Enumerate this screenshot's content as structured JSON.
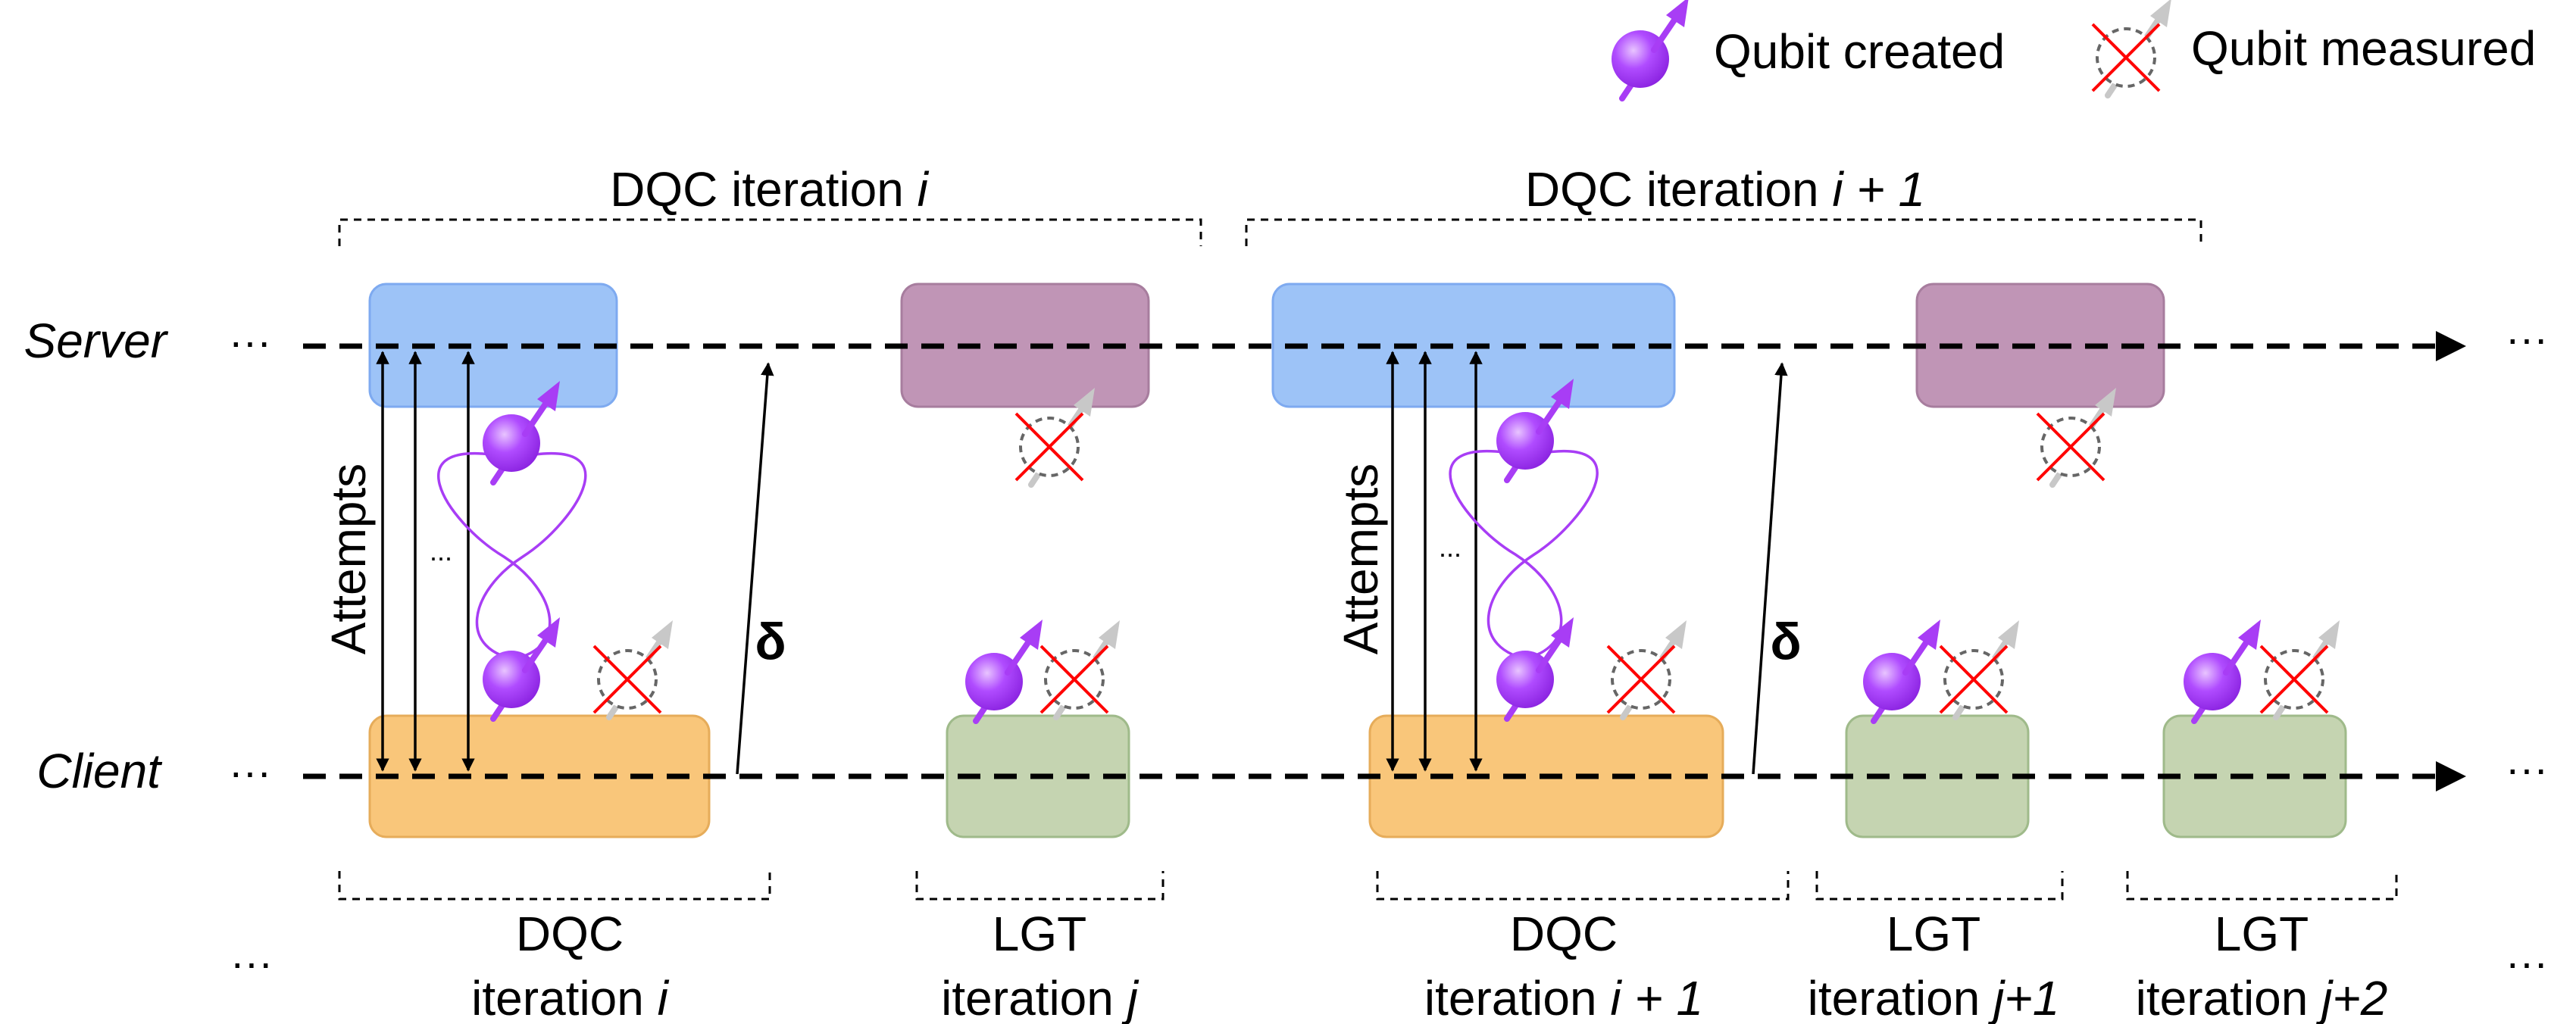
{
  "legend": {
    "created_label": "Qubit created",
    "measured_label": "Qubit measured"
  },
  "timelines": {
    "server_label": "Server",
    "client_label": "Client",
    "ellipsis": "···"
  },
  "top_brackets": {
    "dqc_i": {
      "prefix": "DQC iteration ",
      "var": "i"
    },
    "dqc_i1": {
      "prefix": "DQC iteration ",
      "var": "i + 1"
    }
  },
  "labels": {
    "attempts": "Attempts",
    "delta": "δ",
    "dots": "..."
  },
  "bottom_brackets": {
    "dqc_i": {
      "line1": "DQC",
      "prefix": "iteration ",
      "var": "i"
    },
    "lgt_j": {
      "line1": "LGT",
      "prefix": "iteration ",
      "var": "j"
    },
    "dqc_i1": {
      "line1": "DQC",
      "prefix": "iteration ",
      "var": "i + 1"
    },
    "lgt_j1": {
      "line1": "LGT",
      "prefix": "iteration ",
      "var": "j+1"
    },
    "lgt_j2": {
      "line1": "LGT",
      "prefix": "iteration ",
      "var": "j+2"
    }
  },
  "colors": {
    "dqc_server": "#9dc3f7",
    "dqc_client": "#f9c67a",
    "lgt_server": "#c095b6",
    "lgt_client": "#c5d4b1",
    "qubit": "#a83df5",
    "cross": "#ff0000"
  }
}
